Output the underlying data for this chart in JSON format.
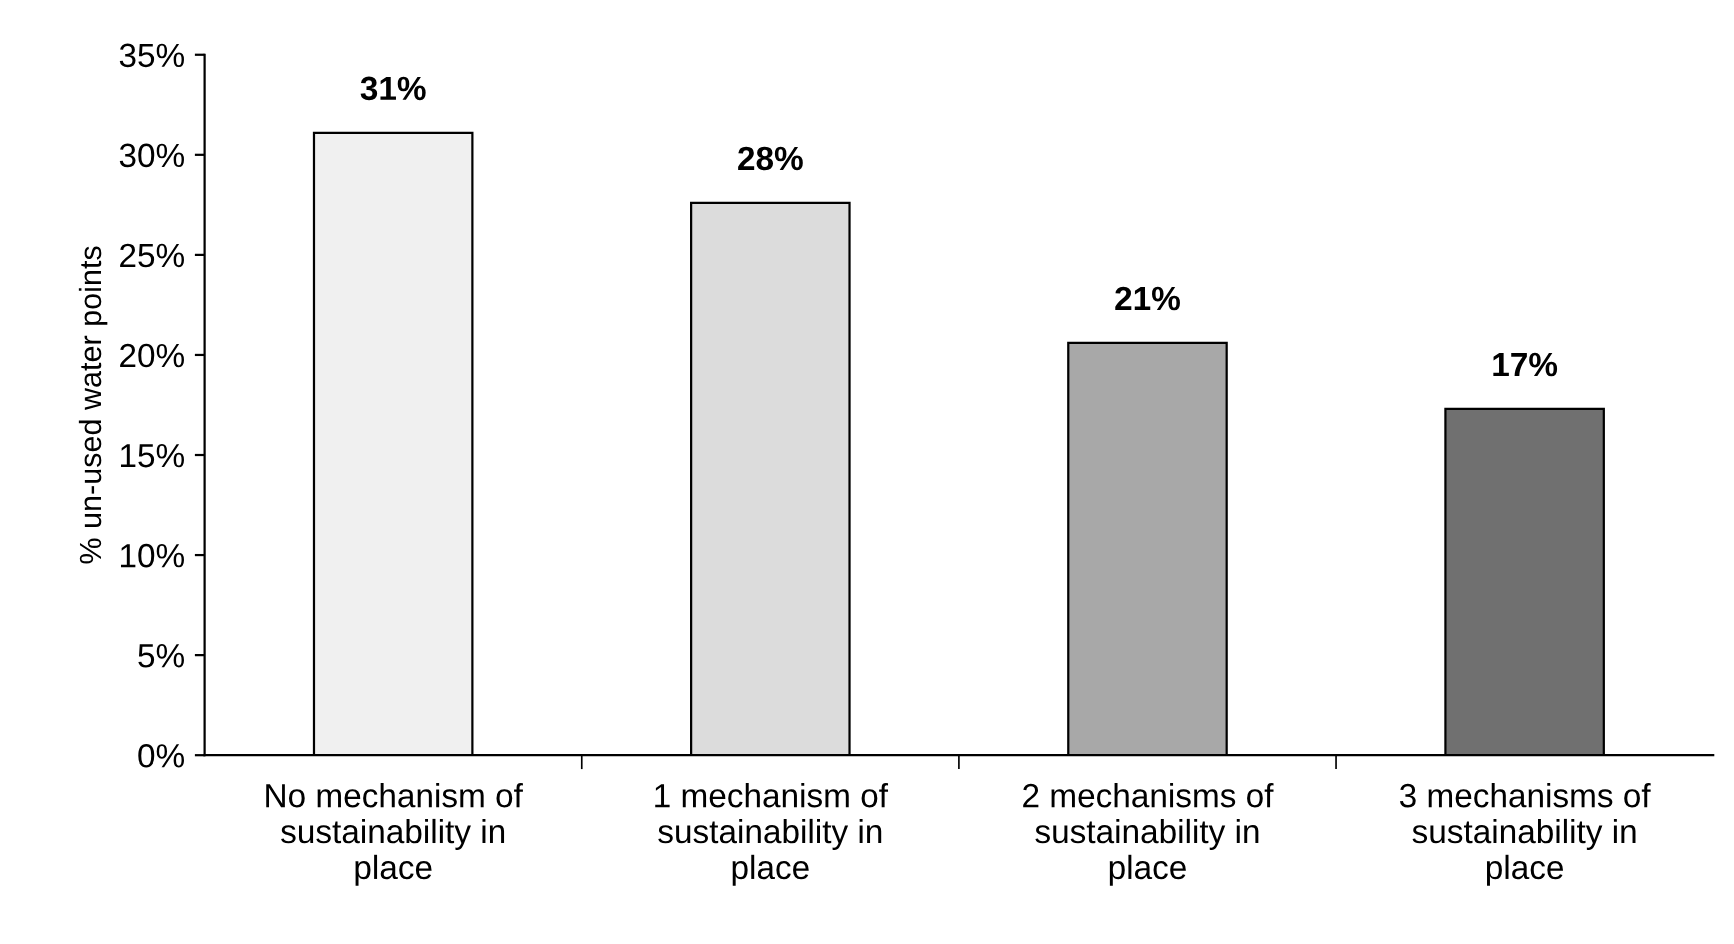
{
  "chart_data": {
    "type": "bar",
    "ylabel": "% un-used water points",
    "categories": [
      "No mechanism of\nsustainability in\nplace",
      "1 mechanism of\nsustainability in\nplace",
      "2 mechanisms of\nsustainability in\nplace",
      "3 mechanisms of\nsustainability in\nplace"
    ],
    "values": [
      31.1,
      27.6,
      20.6,
      17.3
    ],
    "colors": [
      "#f0f0f0",
      "#dcdcdc",
      "#a8a8a8",
      "#707070"
    ],
    "value_labels": [
      "31%",
      "28%",
      "21%",
      "17%"
    ],
    "ylim": [
      0,
      35
    ],
    "yticks": [
      {
        "value": 0,
        "label": "0%"
      },
      {
        "value": 5,
        "label": "5%"
      },
      {
        "value": 10,
        "label": "10%"
      },
      {
        "value": 15,
        "label": "15%"
      },
      {
        "value": 20,
        "label": "20%"
      },
      {
        "value": 25,
        "label": "25%"
      },
      {
        "value": 30,
        "label": "30%"
      },
      {
        "value": 35,
        "label": "35%"
      }
    ],
    "grid": false,
    "legend": false
  }
}
